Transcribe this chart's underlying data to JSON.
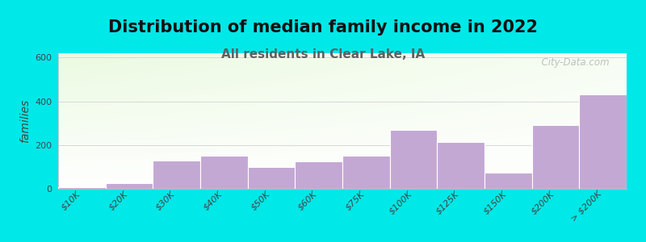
{
  "title": "Distribution of median family income in 2022",
  "subtitle": "All residents in Clear Lake, IA",
  "ylabel": "families",
  "categories": [
    "$10K",
    "$20K",
    "$30K",
    "$40K",
    "$50K",
    "$60K",
    "$75K",
    "$100K",
    "$125K",
    "$150K",
    "$200K",
    "> $200K"
  ],
  "values": [
    8,
    25,
    130,
    150,
    100,
    125,
    150,
    270,
    215,
    75,
    290,
    430
  ],
  "bar_color": "#c4a8d4",
  "bar_edge_color": "#b898c4",
  "background_outer": "#00e8e8",
  "plot_bg_top_left": "#deeedd",
  "plot_bg_bottom": "#f5f5f8",
  "title_fontsize": 15,
  "subtitle_fontsize": 11,
  "subtitle_color": "#606060",
  "ylabel_fontsize": 10,
  "tick_fontsize": 8,
  "ylim": [
    0,
    620
  ],
  "yticks": [
    0,
    200,
    400,
    600
  ],
  "watermark_text": "  City-Data.com",
  "watermark_color": "#b0b8b0",
  "grid_color": "#d8d8d8",
  "watermark_icon_color": "#a0b8a0"
}
